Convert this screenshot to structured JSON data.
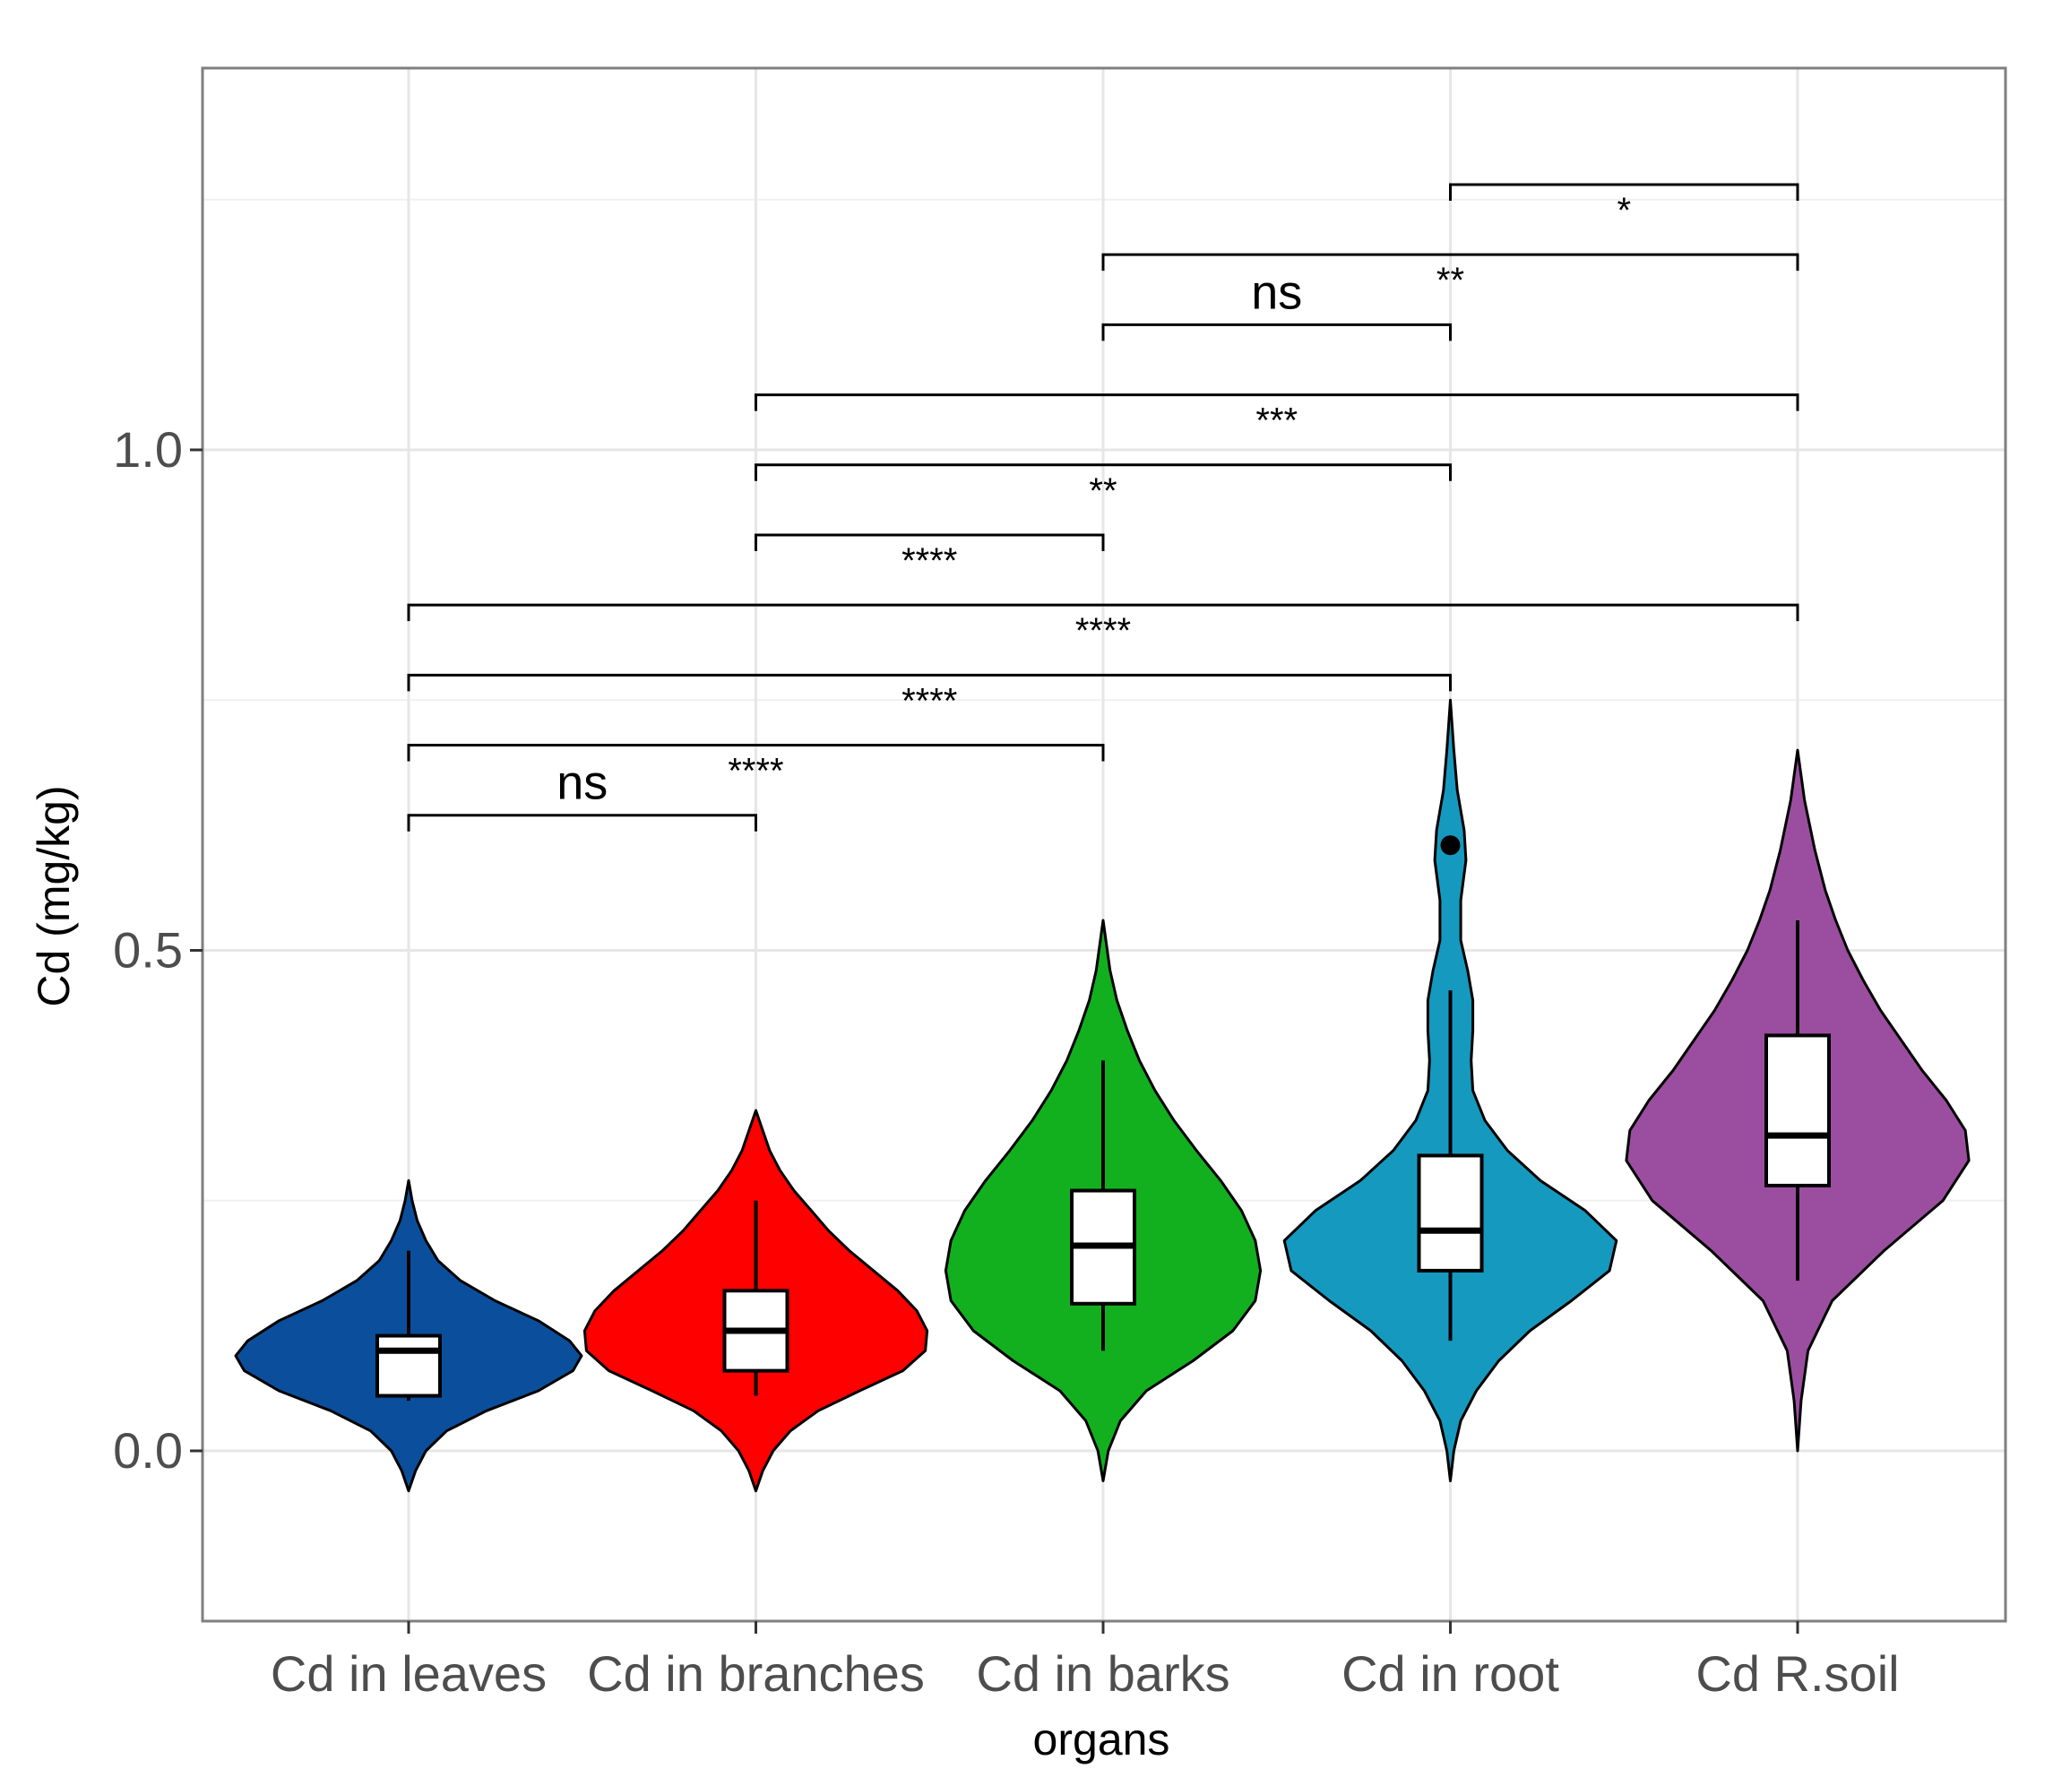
{
  "chart_data": {
    "type": "violin",
    "xlabel": "organs",
    "ylabel": "Cd (mg/kg)",
    "ylim": [
      -0.17,
      1.4
    ],
    "yticks": [
      0.0,
      0.5,
      1.0
    ],
    "ytick_labels": [
      "0.0",
      "0.5",
      "1.0"
    ],
    "grid": true,
    "legend": "none",
    "categories": [
      "Cd in leaves",
      "Cd in branches",
      "Cd in barks",
      "Cd in root",
      "Cd R.soil"
    ],
    "colors": [
      "#0B4F9C",
      "#FF0000",
      "#12B01F",
      "#1699BF",
      "#9B4EA0"
    ],
    "groups": [
      {
        "name": "Cd in leaves",
        "box": {
          "min": 0.05,
          "q1": 0.055,
          "median": 0.1,
          "q3": 0.115,
          "max": 0.2
        },
        "outliers": [],
        "density": [
          [
            -0.04,
            0.0
          ],
          [
            -0.02,
            0.04
          ],
          [
            0.0,
            0.1
          ],
          [
            0.02,
            0.22
          ],
          [
            0.04,
            0.45
          ],
          [
            0.06,
            0.75
          ],
          [
            0.08,
            0.95
          ],
          [
            0.095,
            1.0
          ],
          [
            0.11,
            0.93
          ],
          [
            0.13,
            0.75
          ],
          [
            0.15,
            0.5
          ],
          [
            0.17,
            0.3
          ],
          [
            0.19,
            0.17
          ],
          [
            0.21,
            0.1
          ],
          [
            0.23,
            0.05
          ],
          [
            0.25,
            0.02
          ],
          [
            0.27,
            0.0
          ]
        ]
      },
      {
        "name": "Cd in branches",
        "box": {
          "min": 0.055,
          "q1": 0.08,
          "median": 0.12,
          "q3": 0.16,
          "max": 0.25
        },
        "outliers": [],
        "density": [
          [
            -0.04,
            0.0
          ],
          [
            -0.02,
            0.04
          ],
          [
            0.0,
            0.1
          ],
          [
            0.02,
            0.2
          ],
          [
            0.04,
            0.36
          ],
          [
            0.06,
            0.6
          ],
          [
            0.08,
            0.85
          ],
          [
            0.1,
            0.98
          ],
          [
            0.12,
            0.99
          ],
          [
            0.14,
            0.93
          ],
          [
            0.16,
            0.82
          ],
          [
            0.18,
            0.68
          ],
          [
            0.2,
            0.54
          ],
          [
            0.22,
            0.42
          ],
          [
            0.24,
            0.32
          ],
          [
            0.26,
            0.22
          ],
          [
            0.28,
            0.14
          ],
          [
            0.3,
            0.08
          ],
          [
            0.32,
            0.04
          ],
          [
            0.34,
            0.0
          ]
        ]
      },
      {
        "name": "Cd in barks",
        "box": {
          "min": 0.1,
          "q1": 0.147,
          "median": 0.205,
          "q3": 0.26,
          "max": 0.39
        },
        "outliers": [],
        "density": [
          [
            -0.03,
            0.0
          ],
          [
            0.0,
            0.03
          ],
          [
            0.03,
            0.1
          ],
          [
            0.06,
            0.25
          ],
          [
            0.09,
            0.52
          ],
          [
            0.12,
            0.75
          ],
          [
            0.15,
            0.88
          ],
          [
            0.18,
            0.91
          ],
          [
            0.21,
            0.88
          ],
          [
            0.24,
            0.8
          ],
          [
            0.27,
            0.68
          ],
          [
            0.3,
            0.54
          ],
          [
            0.33,
            0.41
          ],
          [
            0.36,
            0.3
          ],
          [
            0.39,
            0.21
          ],
          [
            0.42,
            0.14
          ],
          [
            0.45,
            0.08
          ],
          [
            0.48,
            0.04
          ],
          [
            0.53,
            0.0
          ]
        ]
      },
      {
        "name": "Cd in root",
        "box": {
          "min": 0.11,
          "q1": 0.18,
          "median": 0.22,
          "q3": 0.295,
          "max": 0.46
        },
        "outliers": [
          0.605
        ],
        "density": [
          [
            -0.03,
            0.0
          ],
          [
            0.0,
            0.02
          ],
          [
            0.03,
            0.06
          ],
          [
            0.06,
            0.15
          ],
          [
            0.09,
            0.28
          ],
          [
            0.12,
            0.46
          ],
          [
            0.15,
            0.7
          ],
          [
            0.18,
            0.92
          ],
          [
            0.21,
            0.96
          ],
          [
            0.24,
            0.78
          ],
          [
            0.27,
            0.52
          ],
          [
            0.3,
            0.33
          ],
          [
            0.33,
            0.2
          ],
          [
            0.36,
            0.13
          ],
          [
            0.39,
            0.12
          ],
          [
            0.42,
            0.13
          ],
          [
            0.45,
            0.13
          ],
          [
            0.48,
            0.1
          ],
          [
            0.51,
            0.06
          ],
          [
            0.55,
            0.06
          ],
          [
            0.59,
            0.09
          ],
          [
            0.62,
            0.08
          ],
          [
            0.66,
            0.04
          ],
          [
            0.7,
            0.02
          ],
          [
            0.75,
            0.0
          ]
        ]
      },
      {
        "name": "Cd R.soil",
        "box": {
          "min": 0.17,
          "q1": 0.265,
          "median": 0.315,
          "q3": 0.415,
          "max": 0.53
        },
        "outliers": [],
        "density": [
          [
            0.0,
            0.0
          ],
          [
            0.05,
            0.02
          ],
          [
            0.1,
            0.06
          ],
          [
            0.15,
            0.2
          ],
          [
            0.2,
            0.5
          ],
          [
            0.25,
            0.84
          ],
          [
            0.29,
            0.99
          ],
          [
            0.32,
            0.97
          ],
          [
            0.35,
            0.86
          ],
          [
            0.38,
            0.72
          ],
          [
            0.41,
            0.6
          ],
          [
            0.44,
            0.48
          ],
          [
            0.47,
            0.38
          ],
          [
            0.5,
            0.29
          ],
          [
            0.53,
            0.22
          ],
          [
            0.56,
            0.16
          ],
          [
            0.6,
            0.1
          ],
          [
            0.65,
            0.04
          ],
          [
            0.7,
            0.0
          ]
        ]
      }
    ],
    "comparisons": [
      {
        "from": 0,
        "to": 1,
        "label": "ns",
        "y": 0.635
      },
      {
        "from": 0,
        "to": 2,
        "label": "****",
        "y": 0.705
      },
      {
        "from": 0,
        "to": 3,
        "label": "****",
        "y": 0.775
      },
      {
        "from": 0,
        "to": 4,
        "label": "****",
        "y": 0.845
      },
      {
        "from": 1,
        "to": 2,
        "label": "****",
        "y": 0.915
      },
      {
        "from": 1,
        "to": 3,
        "label": "**",
        "y": 0.985
      },
      {
        "from": 1,
        "to": 4,
        "label": "***",
        "y": 1.055
      },
      {
        "from": 2,
        "to": 3,
        "label": "ns",
        "y": 1.125
      },
      {
        "from": 2,
        "to": 4,
        "label": "**",
        "y": 1.195
      },
      {
        "from": 3,
        "to": 4,
        "label": "*",
        "y": 1.265
      }
    ]
  }
}
